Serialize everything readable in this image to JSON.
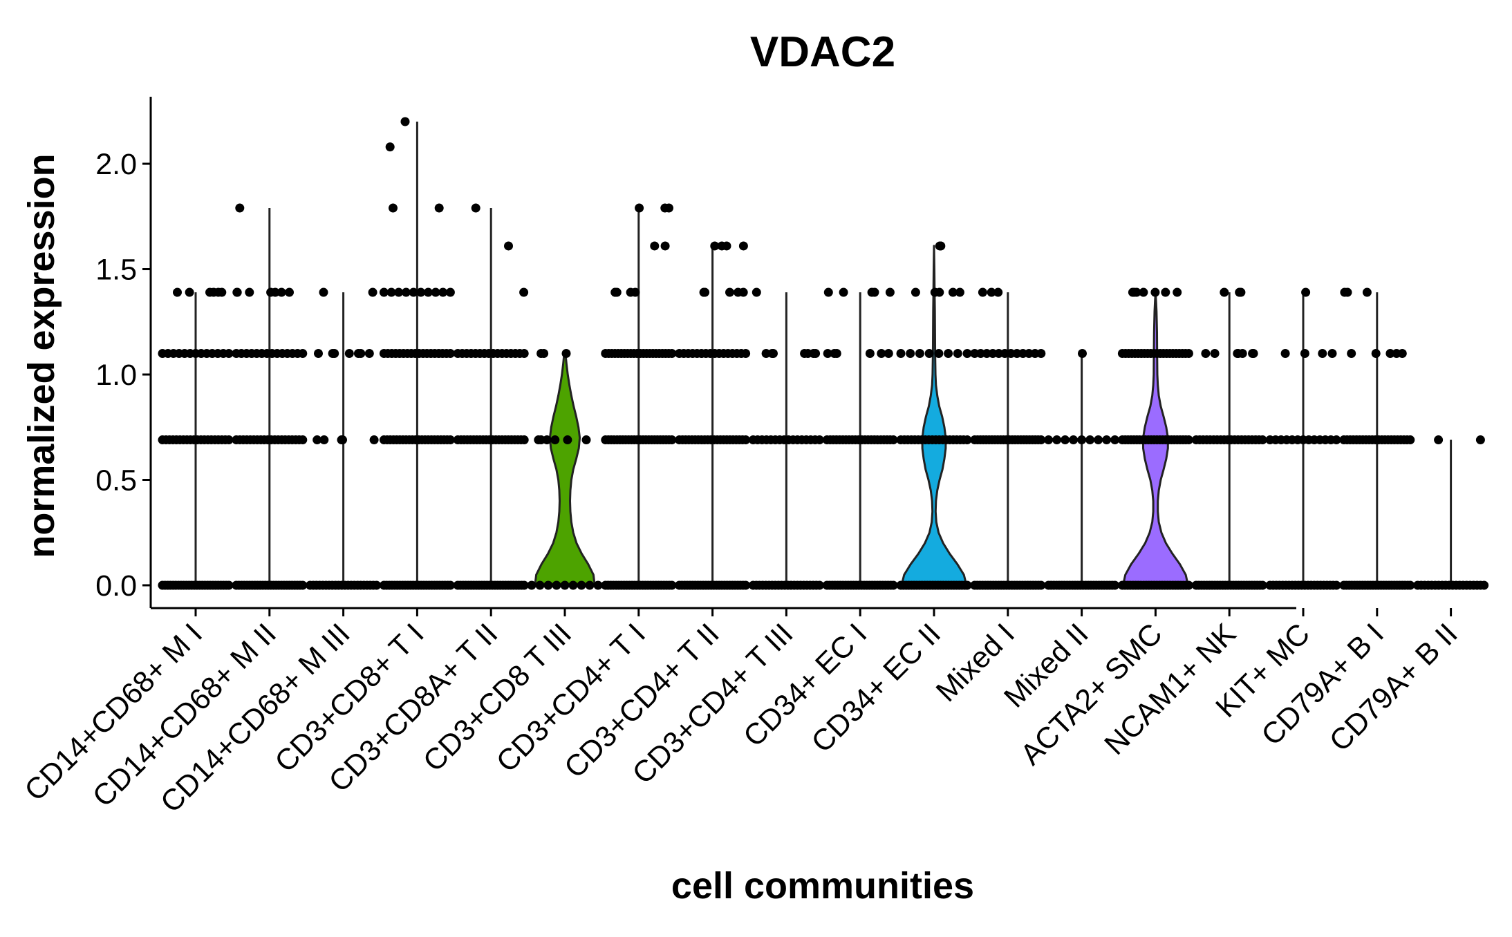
{
  "chart_data": {
    "type": "violin",
    "title": "VDAC2",
    "xlabel": "cell communities",
    "ylabel": "normalized expression",
    "ylim": [
      -0.11,
      2.32
    ],
    "yticks": [
      "0.0",
      "0.5",
      "1.0",
      "1.5",
      "2.0"
    ],
    "ytick_values": [
      0,
      0.5,
      1.0,
      1.5,
      2.0
    ],
    "grid": false,
    "legend": "none",
    "point_color": "#000000",
    "categories": [
      "CD14+CD68+ M I",
      "CD14+CD68+ M II",
      "CD14+CD68+ M III",
      "CD3+CD8+ T I",
      "CD3+CD8A+ T II",
      "CD3+CD8 T III",
      "CD3+CD4+ T I",
      "CD3+CD4+ T II",
      "CD3+CD4+ T III",
      "CD34+ EC I",
      "CD34+ EC II",
      "Mixed I",
      "Mixed II",
      "ACTA2+ SMC",
      "NCAM1+ NK",
      "KIT+ MC",
      "CD79A+ B I",
      "CD79A+ B II"
    ],
    "series": [
      {
        "category": "CD14+CD68+ M I",
        "max": 1.39,
        "violin": "thin",
        "fill": "#F8766D",
        "levels": [
          {
            "y": 0,
            "n": 26
          },
          {
            "y": 0.69,
            "n": 20
          },
          {
            "y": 1.1,
            "n": 13
          },
          {
            "y": 1.39,
            "n": 6
          }
        ]
      },
      {
        "category": "CD14+CD68+ M II",
        "max": 1.79,
        "violin": "thin",
        "fill": "#E58700",
        "levels": [
          {
            "y": 0,
            "n": 26
          },
          {
            "y": 0.69,
            "n": 20
          },
          {
            "y": 1.1,
            "n": 14
          },
          {
            "y": 1.39,
            "n": 7
          },
          {
            "y": 1.79,
            "n": 1
          }
        ]
      },
      {
        "category": "CD14+CD68+ M III",
        "max": 1.39,
        "violin": "thin",
        "fill": "#C99800",
        "levels": [
          {
            "y": 0,
            "n": 22
          },
          {
            "y": 0.69,
            "n": 5
          },
          {
            "y": 1.1,
            "n": 7
          },
          {
            "y": 1.39,
            "n": 2
          }
        ]
      },
      {
        "category": "CD3+CD8+ T I",
        "max": 2.2,
        "violin": "thin",
        "fill": "#A3A500",
        "levels": [
          {
            "y": 0,
            "n": 26
          },
          {
            "y": 0.69,
            "n": 22
          },
          {
            "y": 1.1,
            "n": 18
          },
          {
            "y": 1.39,
            "n": 10
          },
          {
            "y": 1.79,
            "n": 2
          },
          {
            "y": 2.08,
            "n": 1
          },
          {
            "y": 2.2,
            "n": 1
          }
        ]
      },
      {
        "category": "CD3+CD8A+ T II",
        "max": 1.79,
        "violin": "thin",
        "fill": "#6BB100",
        "levels": [
          {
            "y": 0,
            "n": 26
          },
          {
            "y": 0.69,
            "n": 22
          },
          {
            "y": 1.1,
            "n": 16
          },
          {
            "y": 1.39,
            "n": 1
          },
          {
            "y": 1.61,
            "n": 1
          },
          {
            "y": 1.79,
            "n": 1
          }
        ]
      },
      {
        "category": "CD3+CD8 T III",
        "max": 1.1,
        "violin": "shape",
        "fill": "#4DA300",
        "levels": [
          {
            "y": 0,
            "n": 9
          },
          {
            "y": 0.69,
            "n": 6
          },
          {
            "y": 1.1,
            "n": 3
          }
        ],
        "profile": [
          [
            0,
            0.92
          ],
          [
            0.05,
            0.88
          ],
          [
            0.1,
            0.72
          ],
          [
            0.15,
            0.52
          ],
          [
            0.2,
            0.36
          ],
          [
            0.25,
            0.26
          ],
          [
            0.3,
            0.2
          ],
          [
            0.35,
            0.17
          ],
          [
            0.4,
            0.16
          ],
          [
            0.45,
            0.17
          ],
          [
            0.5,
            0.2
          ],
          [
            0.55,
            0.26
          ],
          [
            0.6,
            0.35
          ],
          [
            0.65,
            0.43
          ],
          [
            0.7,
            0.46
          ],
          [
            0.75,
            0.42
          ],
          [
            0.8,
            0.35
          ],
          [
            0.85,
            0.27
          ],
          [
            0.9,
            0.2
          ],
          [
            0.95,
            0.14
          ],
          [
            1.0,
            0.09
          ],
          [
            1.05,
            0.05
          ],
          [
            1.1,
            0.02
          ]
        ]
      },
      {
        "category": "CD3+CD4+ T I",
        "max": 1.79,
        "violin": "thin",
        "fill": "#00BA38",
        "levels": [
          {
            "y": 0,
            "n": 26
          },
          {
            "y": 0.69,
            "n": 24
          },
          {
            "y": 1.1,
            "n": 22
          },
          {
            "y": 1.39,
            "n": 5
          },
          {
            "y": 1.61,
            "n": 2
          },
          {
            "y": 1.79,
            "n": 3
          }
        ]
      },
      {
        "category": "CD3+CD4+ T II",
        "max": 1.61,
        "violin": "thin",
        "fill": "#00C08B",
        "levels": [
          {
            "y": 0,
            "n": 26
          },
          {
            "y": 0.69,
            "n": 22
          },
          {
            "y": 1.1,
            "n": 16
          },
          {
            "y": 1.39,
            "n": 6
          },
          {
            "y": 1.61,
            "n": 4
          }
        ]
      },
      {
        "category": "CD3+CD4+ T III",
        "max": 1.39,
        "violin": "thin",
        "fill": "#00BFC4",
        "levels": [
          {
            "y": 0,
            "n": 22
          },
          {
            "y": 0.69,
            "n": 16
          },
          {
            "y": 1.1,
            "n": 7
          },
          {
            "y": 1.39,
            "n": 1
          }
        ]
      },
      {
        "category": "CD34+ EC I",
        "max": 1.39,
        "violin": "thin",
        "fill": "#00B4EF",
        "levels": [
          {
            "y": 0,
            "n": 26
          },
          {
            "y": 0.69,
            "n": 22
          },
          {
            "y": 1.1,
            "n": 6
          },
          {
            "y": 1.39,
            "n": 5
          }
        ]
      },
      {
        "category": "CD34+ EC II",
        "max": 1.61,
        "violin": "shape",
        "fill": "#14ABDF",
        "levels": [
          {
            "y": 0,
            "n": 26
          },
          {
            "y": 0.69,
            "n": 20
          },
          {
            "y": 1.1,
            "n": 8
          },
          {
            "y": 1.39,
            "n": 5
          },
          {
            "y": 1.61,
            "n": 3
          }
        ],
        "profile": [
          [
            0,
            1.0
          ],
          [
            0.05,
            0.92
          ],
          [
            0.1,
            0.72
          ],
          [
            0.15,
            0.48
          ],
          [
            0.2,
            0.28
          ],
          [
            0.25,
            0.14
          ],
          [
            0.3,
            0.07
          ],
          [
            0.35,
            0.05
          ],
          [
            0.4,
            0.06
          ],
          [
            0.45,
            0.1
          ],
          [
            0.5,
            0.17
          ],
          [
            0.55,
            0.26
          ],
          [
            0.6,
            0.32
          ],
          [
            0.65,
            0.36
          ],
          [
            0.7,
            0.36
          ],
          [
            0.75,
            0.32
          ],
          [
            0.8,
            0.25
          ],
          [
            0.85,
            0.16
          ],
          [
            0.9,
            0.1
          ],
          [
            0.95,
            0.06
          ],
          [
            1.0,
            0.045
          ],
          [
            1.1,
            0.035
          ],
          [
            1.2,
            0.03
          ],
          [
            1.3,
            0.025
          ],
          [
            1.4,
            0.018
          ],
          [
            1.5,
            0.01
          ],
          [
            1.61,
            0.0
          ]
        ]
      },
      {
        "category": "Mixed I",
        "max": 1.39,
        "violin": "thin",
        "fill": "#00A9FF",
        "levels": [
          {
            "y": 0,
            "n": 26
          },
          {
            "y": 0.69,
            "n": 24
          },
          {
            "y": 1.1,
            "n": 12
          },
          {
            "y": 1.39,
            "n": 3
          }
        ]
      },
      {
        "category": "Mixed II",
        "max": 1.1,
        "violin": "thin",
        "fill": "#619CFF",
        "levels": [
          {
            "y": 0,
            "n": 26
          },
          {
            "y": 0.69,
            "n": 9
          },
          {
            "y": 1.1,
            "n": 1
          }
        ]
      },
      {
        "category": "ACTA2+ SMC",
        "max": 1.39,
        "violin": "shape",
        "fill": "#9B6CFF",
        "levels": [
          {
            "y": 0,
            "n": 26
          },
          {
            "y": 0.69,
            "n": 24
          },
          {
            "y": 1.1,
            "n": 22
          },
          {
            "y": 1.39,
            "n": 7
          }
        ],
        "profile": [
          [
            0,
            1.0
          ],
          [
            0.05,
            0.93
          ],
          [
            0.1,
            0.75
          ],
          [
            0.15,
            0.52
          ],
          [
            0.2,
            0.32
          ],
          [
            0.25,
            0.18
          ],
          [
            0.3,
            0.1
          ],
          [
            0.35,
            0.07
          ],
          [
            0.4,
            0.07
          ],
          [
            0.45,
            0.1
          ],
          [
            0.5,
            0.16
          ],
          [
            0.55,
            0.25
          ],
          [
            0.6,
            0.33
          ],
          [
            0.65,
            0.38
          ],
          [
            0.7,
            0.38
          ],
          [
            0.75,
            0.33
          ],
          [
            0.8,
            0.25
          ],
          [
            0.85,
            0.16
          ],
          [
            0.9,
            0.1
          ],
          [
            0.95,
            0.07
          ],
          [
            1.0,
            0.055
          ],
          [
            1.1,
            0.05
          ],
          [
            1.2,
            0.045
          ],
          [
            1.3,
            0.03
          ],
          [
            1.35,
            0.015
          ],
          [
            1.39,
            0.0
          ]
        ]
      },
      {
        "category": "NCAM1+ NK",
        "max": 1.39,
        "violin": "thin",
        "fill": "#DB72FB",
        "levels": [
          {
            "y": 0,
            "n": 26
          },
          {
            "y": 0.69,
            "n": 20
          },
          {
            "y": 1.1,
            "n": 7
          },
          {
            "y": 1.39,
            "n": 4
          }
        ]
      },
      {
        "category": "KIT+ MC",
        "max": 1.39,
        "violin": "thin",
        "fill": "#F365E6",
        "levels": [
          {
            "y": 0,
            "n": 22
          },
          {
            "y": 0.69,
            "n": 13
          },
          {
            "y": 1.1,
            "n": 4
          },
          {
            "y": 1.39,
            "n": 1
          }
        ]
      },
      {
        "category": "CD79A+ B I",
        "max": 1.39,
        "violin": "thin",
        "fill": "#FF61C3",
        "levels": [
          {
            "y": 0,
            "n": 26
          },
          {
            "y": 0.69,
            "n": 22
          },
          {
            "y": 1.1,
            "n": 5
          },
          {
            "y": 1.39,
            "n": 3
          }
        ]
      },
      {
        "category": "CD79A+ B II",
        "max": 0.69,
        "violin": "thin",
        "fill": "#FF6C91",
        "levels": [
          {
            "y": 0,
            "n": 20
          },
          {
            "y": 0.69,
            "n": 2
          }
        ]
      }
    ]
  }
}
